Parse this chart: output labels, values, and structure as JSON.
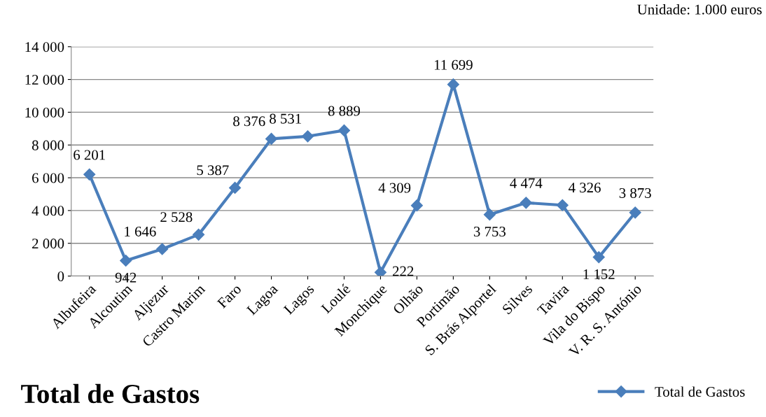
{
  "chart_data": {
    "type": "line",
    "title": "Total de Gastos",
    "annotations": [
      "Unidade: 1.000 euros"
    ],
    "categories": [
      "Albufeira",
      "Alcoutim",
      "Aljezur",
      "Castro Marim",
      "Faro",
      "Lagoa",
      "Lagos",
      "Loulé",
      "Monchique",
      "Olhão",
      "Portimão",
      "S. Brás Alportel",
      "Silves",
      "Tavira",
      "Vila do Bispo",
      "V. R. S. António"
    ],
    "series": [
      {
        "name": "Total de Gastos",
        "color": "#4a7ebb",
        "values": [
          6201,
          942,
          1646,
          2528,
          5387,
          8376,
          8531,
          8889,
          222,
          4309,
          11699,
          3753,
          4474,
          4326,
          1152,
          3873
        ],
        "value_labels": [
          "6 201",
          "942",
          "1 646",
          "2 528",
          "5 387",
          "8 376",
          "8 531",
          "8 889",
          "222",
          "4 309",
          "11 699",
          "3 753",
          "4 474",
          "4 326",
          "1 152",
          "3 873"
        ]
      }
    ],
    "ylim": [
      0,
      14000
    ],
    "yticks": [
      0,
      {
        "value": 2000,
        "label": "2 000"
      },
      {
        "value": 4000,
        "label": "4 000"
      },
      {
        "value": 6000,
        "label": "6 000"
      },
      {
        "value": 8000,
        "label": "8 000"
      },
      {
        "value": 10000,
        "label": "10 000"
      },
      {
        "value": 12000,
        "label": "12 000"
      },
      {
        "value": 14000,
        "label": "14 000"
      }
    ],
    "grid": "y",
    "legend": "bottom right",
    "marker": "diamond",
    "line_style": "solid"
  }
}
